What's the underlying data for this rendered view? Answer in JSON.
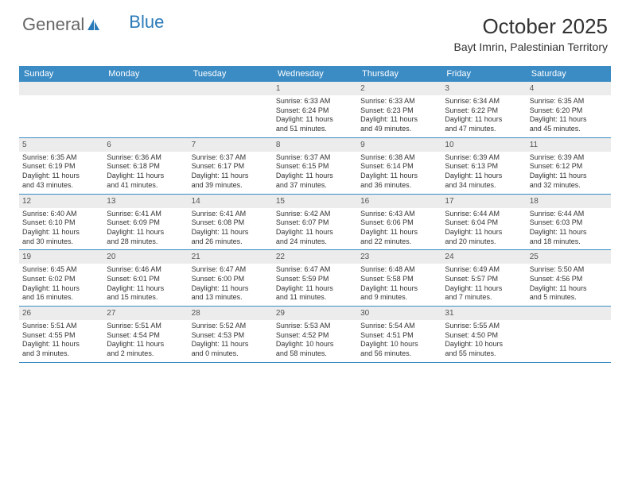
{
  "logo": {
    "text_general": "General",
    "text_blue": "Blue"
  },
  "title": "October 2025",
  "location": "Bayt Imrin, Palestinian Territory",
  "colors": {
    "header_bg": "#3b8bc4",
    "header_text": "#ffffff",
    "daynum_bg": "#ececec",
    "border": "#3b8bc4",
    "logo_gray": "#666666",
    "logo_blue": "#2a7ab8"
  },
  "weekdays": [
    "Sunday",
    "Monday",
    "Tuesday",
    "Wednesday",
    "Thursday",
    "Friday",
    "Saturday"
  ],
  "weeks": [
    [
      {
        "num": ""
      },
      {
        "num": ""
      },
      {
        "num": ""
      },
      {
        "num": "1",
        "sunrise": "Sunrise: 6:33 AM",
        "sunset": "Sunset: 6:24 PM",
        "daylight1": "Daylight: 11 hours",
        "daylight2": "and 51 minutes."
      },
      {
        "num": "2",
        "sunrise": "Sunrise: 6:33 AM",
        "sunset": "Sunset: 6:23 PM",
        "daylight1": "Daylight: 11 hours",
        "daylight2": "and 49 minutes."
      },
      {
        "num": "3",
        "sunrise": "Sunrise: 6:34 AM",
        "sunset": "Sunset: 6:22 PM",
        "daylight1": "Daylight: 11 hours",
        "daylight2": "and 47 minutes."
      },
      {
        "num": "4",
        "sunrise": "Sunrise: 6:35 AM",
        "sunset": "Sunset: 6:20 PM",
        "daylight1": "Daylight: 11 hours",
        "daylight2": "and 45 minutes."
      }
    ],
    [
      {
        "num": "5",
        "sunrise": "Sunrise: 6:35 AM",
        "sunset": "Sunset: 6:19 PM",
        "daylight1": "Daylight: 11 hours",
        "daylight2": "and 43 minutes."
      },
      {
        "num": "6",
        "sunrise": "Sunrise: 6:36 AM",
        "sunset": "Sunset: 6:18 PM",
        "daylight1": "Daylight: 11 hours",
        "daylight2": "and 41 minutes."
      },
      {
        "num": "7",
        "sunrise": "Sunrise: 6:37 AM",
        "sunset": "Sunset: 6:17 PM",
        "daylight1": "Daylight: 11 hours",
        "daylight2": "and 39 minutes."
      },
      {
        "num": "8",
        "sunrise": "Sunrise: 6:37 AM",
        "sunset": "Sunset: 6:15 PM",
        "daylight1": "Daylight: 11 hours",
        "daylight2": "and 37 minutes."
      },
      {
        "num": "9",
        "sunrise": "Sunrise: 6:38 AM",
        "sunset": "Sunset: 6:14 PM",
        "daylight1": "Daylight: 11 hours",
        "daylight2": "and 36 minutes."
      },
      {
        "num": "10",
        "sunrise": "Sunrise: 6:39 AM",
        "sunset": "Sunset: 6:13 PM",
        "daylight1": "Daylight: 11 hours",
        "daylight2": "and 34 minutes."
      },
      {
        "num": "11",
        "sunrise": "Sunrise: 6:39 AM",
        "sunset": "Sunset: 6:12 PM",
        "daylight1": "Daylight: 11 hours",
        "daylight2": "and 32 minutes."
      }
    ],
    [
      {
        "num": "12",
        "sunrise": "Sunrise: 6:40 AM",
        "sunset": "Sunset: 6:10 PM",
        "daylight1": "Daylight: 11 hours",
        "daylight2": "and 30 minutes."
      },
      {
        "num": "13",
        "sunrise": "Sunrise: 6:41 AM",
        "sunset": "Sunset: 6:09 PM",
        "daylight1": "Daylight: 11 hours",
        "daylight2": "and 28 minutes."
      },
      {
        "num": "14",
        "sunrise": "Sunrise: 6:41 AM",
        "sunset": "Sunset: 6:08 PM",
        "daylight1": "Daylight: 11 hours",
        "daylight2": "and 26 minutes."
      },
      {
        "num": "15",
        "sunrise": "Sunrise: 6:42 AM",
        "sunset": "Sunset: 6:07 PM",
        "daylight1": "Daylight: 11 hours",
        "daylight2": "and 24 minutes."
      },
      {
        "num": "16",
        "sunrise": "Sunrise: 6:43 AM",
        "sunset": "Sunset: 6:06 PM",
        "daylight1": "Daylight: 11 hours",
        "daylight2": "and 22 minutes."
      },
      {
        "num": "17",
        "sunrise": "Sunrise: 6:44 AM",
        "sunset": "Sunset: 6:04 PM",
        "daylight1": "Daylight: 11 hours",
        "daylight2": "and 20 minutes."
      },
      {
        "num": "18",
        "sunrise": "Sunrise: 6:44 AM",
        "sunset": "Sunset: 6:03 PM",
        "daylight1": "Daylight: 11 hours",
        "daylight2": "and 18 minutes."
      }
    ],
    [
      {
        "num": "19",
        "sunrise": "Sunrise: 6:45 AM",
        "sunset": "Sunset: 6:02 PM",
        "daylight1": "Daylight: 11 hours",
        "daylight2": "and 16 minutes."
      },
      {
        "num": "20",
        "sunrise": "Sunrise: 6:46 AM",
        "sunset": "Sunset: 6:01 PM",
        "daylight1": "Daylight: 11 hours",
        "daylight2": "and 15 minutes."
      },
      {
        "num": "21",
        "sunrise": "Sunrise: 6:47 AM",
        "sunset": "Sunset: 6:00 PM",
        "daylight1": "Daylight: 11 hours",
        "daylight2": "and 13 minutes."
      },
      {
        "num": "22",
        "sunrise": "Sunrise: 6:47 AM",
        "sunset": "Sunset: 5:59 PM",
        "daylight1": "Daylight: 11 hours",
        "daylight2": "and 11 minutes."
      },
      {
        "num": "23",
        "sunrise": "Sunrise: 6:48 AM",
        "sunset": "Sunset: 5:58 PM",
        "daylight1": "Daylight: 11 hours",
        "daylight2": "and 9 minutes."
      },
      {
        "num": "24",
        "sunrise": "Sunrise: 6:49 AM",
        "sunset": "Sunset: 5:57 PM",
        "daylight1": "Daylight: 11 hours",
        "daylight2": "and 7 minutes."
      },
      {
        "num": "25",
        "sunrise": "Sunrise: 5:50 AM",
        "sunset": "Sunset: 4:56 PM",
        "daylight1": "Daylight: 11 hours",
        "daylight2": "and 5 minutes."
      }
    ],
    [
      {
        "num": "26",
        "sunrise": "Sunrise: 5:51 AM",
        "sunset": "Sunset: 4:55 PM",
        "daylight1": "Daylight: 11 hours",
        "daylight2": "and 3 minutes."
      },
      {
        "num": "27",
        "sunrise": "Sunrise: 5:51 AM",
        "sunset": "Sunset: 4:54 PM",
        "daylight1": "Daylight: 11 hours",
        "daylight2": "and 2 minutes."
      },
      {
        "num": "28",
        "sunrise": "Sunrise: 5:52 AM",
        "sunset": "Sunset: 4:53 PM",
        "daylight1": "Daylight: 11 hours",
        "daylight2": "and 0 minutes."
      },
      {
        "num": "29",
        "sunrise": "Sunrise: 5:53 AM",
        "sunset": "Sunset: 4:52 PM",
        "daylight1": "Daylight: 10 hours",
        "daylight2": "and 58 minutes."
      },
      {
        "num": "30",
        "sunrise": "Sunrise: 5:54 AM",
        "sunset": "Sunset: 4:51 PM",
        "daylight1": "Daylight: 10 hours",
        "daylight2": "and 56 minutes."
      },
      {
        "num": "31",
        "sunrise": "Sunrise: 5:55 AM",
        "sunset": "Sunset: 4:50 PM",
        "daylight1": "Daylight: 10 hours",
        "daylight2": "and 55 minutes."
      },
      {
        "num": ""
      }
    ]
  ]
}
